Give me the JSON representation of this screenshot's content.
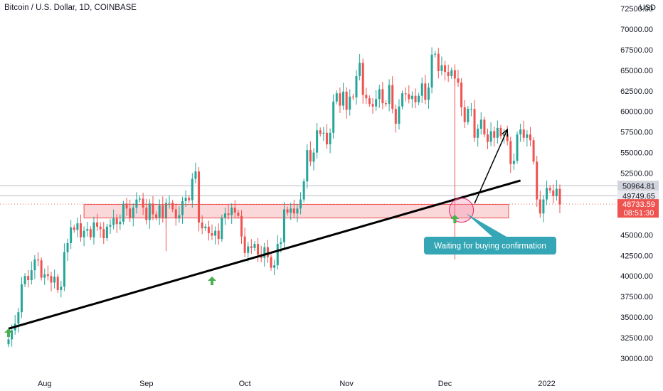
{
  "header": {
    "symbol_title": "Bitcoin / U.S. Dollar, 1D, COINBASE",
    "currency": "USD"
  },
  "chart_data": {
    "type": "candlestick",
    "ylim": [
      29000,
      72000
    ],
    "y_ticks": [
      "72500.00",
      "70000.00",
      "67500.00",
      "65000.00",
      "62500.00",
      "60000.00",
      "57500.00",
      "55000.00",
      "52500.00",
      "50000.00",
      "47500.00",
      "45000.00",
      "42500.00",
      "40000.00",
      "37500.00",
      "35000.00",
      "32500.00",
      "30000.00"
    ],
    "x_ticks": [
      "Aug",
      "Sep",
      "Oct",
      "Nov",
      "Dec",
      "2022"
    ],
    "price_labels": [
      {
        "value": 50964.81,
        "text": "50964.81",
        "bg": "#d1d4dc",
        "color": "#131722"
      },
      {
        "value": 49749.65,
        "text": "49749.65",
        "bg": "#e8e9ee",
        "color": "#131722"
      },
      {
        "value": 48733.59,
        "text": "48733.59",
        "countdown": "08:51:30",
        "bg": "#ef5350",
        "color": "#ffffff"
      }
    ],
    "colors": {
      "up": "#26a69a",
      "down": "#ef5350",
      "trendline": "#000000",
      "zone_fill": "#f8c9cc",
      "zone_stroke": "#ef5350",
      "callout": "#34a6b5",
      "arrow_up": "#4caf50"
    },
    "closes": [
      32300,
      33400,
      34200,
      35600,
      39000,
      40000,
      39500,
      40700,
      42000,
      41900,
      39800,
      40200,
      40000,
      39200,
      39900,
      38300,
      38700,
      42900,
      44000,
      45900,
      45600,
      46400,
      44700,
      45500,
      45700,
      44700,
      46500,
      46000,
      45700,
      44600,
      46000,
      46200,
      47000,
      46300,
      46600,
      48800,
      48200,
      47100,
      48300,
      49300,
      49400,
      48300,
      46800,
      48800,
      47500,
      47100,
      48600,
      47000,
      48900,
      48900,
      48100,
      47000,
      47400,
      49100,
      49500,
      49200,
      51800,
      52700,
      46500,
      45800,
      46000,
      45200,
      44900,
      45500,
      44500,
      47100,
      47600,
      47400,
      48300,
      47700,
      47300,
      44800,
      42800,
      43600,
      43400,
      43900,
      42600,
      42200,
      43500,
      42300,
      41000,
      41300,
      43900,
      44100,
      48100,
      47700,
      48200,
      47600,
      48200,
      49300,
      51500,
      55300,
      53900,
      55000,
      57700,
      57300,
      57400,
      56000,
      57400,
      61200,
      62200,
      60700,
      62400,
      60200,
      61800,
      61700,
      64300,
      65900,
      62000,
      61600,
      60900,
      60600,
      61500,
      62700,
      61000,
      60900,
      63200,
      60300,
      58500,
      60600,
      62200,
      62100,
      61500,
      61900,
      61100,
      61900,
      63400,
      61400,
      62900,
      66900,
      67000,
      64900,
      65600,
      64800,
      64300,
      65000,
      64000,
      63500,
      60500,
      58700,
      60300,
      60300,
      56800,
      57900,
      59000,
      57200,
      56300,
      57600,
      56800,
      58000,
      57000,
      57200,
      56400,
      53600,
      54000,
      57200,
      57800,
      56800,
      57200,
      56500,
      53900,
      49300,
      47600,
      49300,
      50700,
      50400,
      49700,
      50600,
      48700
    ],
    "trendline": {
      "from": {
        "x": "2021-07-21",
        "y": 33600
      },
      "to": {
        "x": "2021-12-24",
        "y": 51600
      }
    },
    "support_zone": {
      "y_low": 47050,
      "y_high": 48700
    },
    "projection_arrow": {
      "from": {
        "x": "2021-12-10",
        "y": 48800
      },
      "to": {
        "x": "2021-12-20",
        "y": 57800
      }
    },
    "annotations": [
      {
        "text": "Waiting for buying confirmation"
      }
    ],
    "markers": [
      "2021-07-21",
      "2021-09-21",
      "2021-12-04"
    ]
  }
}
